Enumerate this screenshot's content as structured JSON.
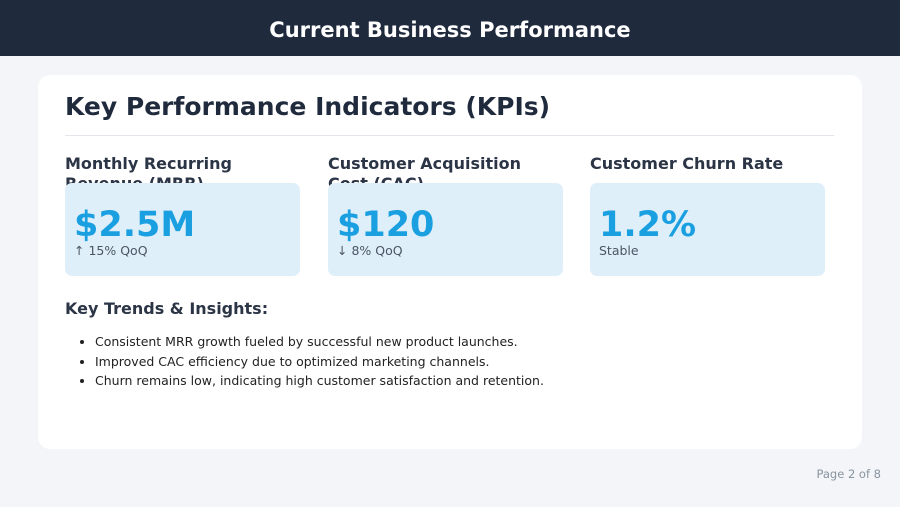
{
  "header": {
    "title": "Current Business Performance"
  },
  "section": {
    "title": "Key Performance Indicators (KPIs)"
  },
  "kpis": [
    {
      "label": "Monthly Recurring Revenue (MRR)",
      "value": "$2.5M",
      "change": "↑ 15% QoQ"
    },
    {
      "label": "Customer Acquisition Cost (CAC)",
      "value": "$120",
      "change": "↓ 8% QoQ"
    },
    {
      "label": "Customer Churn Rate",
      "value": "1.2%",
      "change": "Stable"
    }
  ],
  "insights": {
    "title": "Key Trends & Insights:",
    "items": [
      "Consistent MRR growth fueled by successful new product launches.",
      "Improved CAC efficiency due to optimized marketing channels.",
      "Churn remains low, indicating high customer satisfaction and retention."
    ]
  },
  "footer": {
    "page": "Page 2 of 8"
  }
}
